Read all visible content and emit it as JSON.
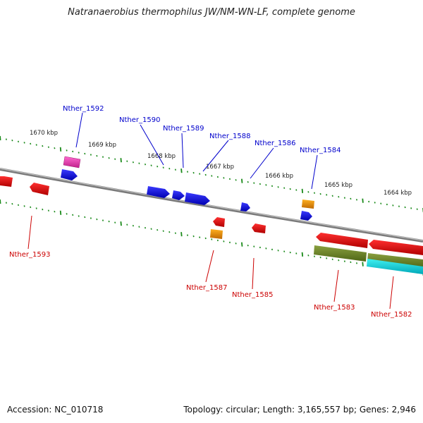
{
  "title": "Natranaerobius thermophilus JW/NM-WN-LF, complete genome",
  "footer": {
    "accession": "Accession: NC_010718",
    "summary": "Topology: circular; Length: 3,165,557 bp; Genes: 2,946"
  },
  "colors": {
    "backbone": "#8a8a8a",
    "tick": "#1a8a1a",
    "forward_label": "#0000cc",
    "reverse_label": "#cc0000",
    "scale_label": "#222222"
  },
  "scale_labels": [
    "1670 kbp",
    "1669 kbp",
    "1668 kbp",
    "1667 kbp",
    "1666 kbp",
    "1665 kbp",
    "1664 kbp"
  ],
  "forward_genes": [
    "Nther_1592",
    "Nther_1590",
    "Nther_1589",
    "Nther_1588",
    "Nther_1586",
    "Nther_1584"
  ],
  "reverse_genes": [
    "Nther_1593",
    "Nther_1587",
    "Nther_1585",
    "Nther_1583",
    "Nther_1582"
  ]
}
